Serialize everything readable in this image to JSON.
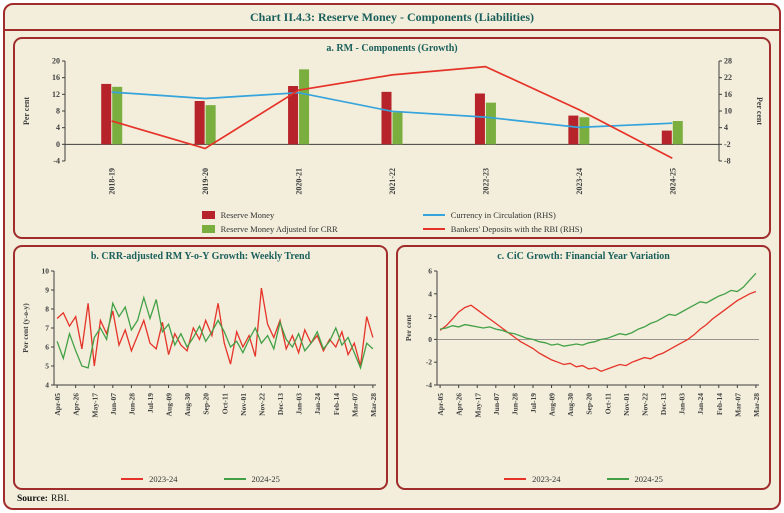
{
  "header": {
    "title": "Chart II.4.3: Reserve Money - Components (Liabilities)"
  },
  "source": {
    "label": "Source:",
    "value": "RBI."
  },
  "colors": {
    "frame": "#a02c2c",
    "background": "#f2eedb",
    "title_text": "#1a5f5b",
    "axis_text": "#3f3f3f",
    "bar_red": "#b6232a",
    "bar_green": "#7aae3f",
    "line_blue": "#35a3dc",
    "line_red": "#e63329",
    "line_green": "#43a047"
  },
  "chart_data": [
    {
      "id": "a",
      "type": "bar-line-combo",
      "title": "a. RM - Components (Growth)",
      "ylabel_left": "Per cent",
      "ylabel_right": "Per cent",
      "y_left": {
        "min": -4,
        "max": 20,
        "step": 4
      },
      "y_right": {
        "min": -8,
        "max": 28,
        "step": 6
      },
      "categories": [
        "2018-19",
        "2019-20",
        "2020-21",
        "2021-22",
        "2022-23",
        "2023-24",
        "2024-25"
      ],
      "bars": [
        {
          "name": "Reserve Money",
          "color_key": "bar_red",
          "values": [
            14.5,
            10.4,
            14.0,
            12.6,
            12.2,
            6.9,
            3.3
          ]
        },
        {
          "name": "Reserve Money Adjusted for CRR",
          "color_key": "bar_green",
          "values": [
            13.8,
            9.4,
            18.0,
            7.7,
            10.0,
            6.5,
            5.6
          ]
        }
      ],
      "lines": [
        {
          "name": "Currency in Circulation (RHS)",
          "color_key": "line_blue",
          "axis": "right",
          "values": [
            16.8,
            14.5,
            16.6,
            9.9,
            7.8,
            4.1,
            5.6
          ]
        },
        {
          "name": "Bankers' Deposits with the RBI (RHS)",
          "color_key": "line_red",
          "axis": "right",
          "values": [
            6.4,
            -3.5,
            17.5,
            23.0,
            26.0,
            10.5,
            -7.0
          ]
        }
      ],
      "legend_position": "bottom"
    },
    {
      "id": "b",
      "type": "line",
      "title": "b. CRR-adjusted RM Y-o-Y Growth: Weekly Trend",
      "ylabel": "Per cent (y-o-y)",
      "y": {
        "min": 4,
        "max": 10,
        "step": 1
      },
      "zero_line": false,
      "x_tick_every": 3,
      "x_tick_labels": [
        "Apr-05",
        "Apr-26",
        "May-17",
        "Jun-07",
        "Jun-28",
        "Jul-19",
        "Aug-09",
        "Aug-30",
        "Sep-20",
        "Oct-11",
        "Nov-01",
        "Nov-22",
        "Dec-13",
        "Jan-03",
        "Jan-24",
        "Feb-14",
        "Mar-07",
        "Mar-28"
      ],
      "series": [
        {
          "name": "2023-24",
          "color_key": "line_red",
          "values": [
            7.5,
            7.8,
            7.1,
            7.6,
            5.9,
            8.3,
            5.0,
            7.4,
            6.7,
            7.9,
            6.1,
            6.9,
            5.8,
            6.6,
            7.4,
            6.2,
            5.9,
            7.3,
            5.6,
            6.7,
            6.1,
            5.8,
            7.0,
            6.4,
            7.4,
            6.6,
            8.3,
            6.2,
            5.1,
            6.8,
            6.0,
            6.6,
            5.5,
            9.1,
            7.2,
            6.5,
            7.4,
            5.9,
            6.6,
            5.7,
            6.9,
            6.2,
            6.6,
            5.8,
            6.4,
            6.0,
            6.8,
            5.6,
            6.2,
            5.0,
            7.6,
            6.5
          ]
        },
        {
          "name": "2024-25",
          "color_key": "line_green",
          "values": [
            6.3,
            5.4,
            6.7,
            5.8,
            5.0,
            4.9,
            6.5,
            7.0,
            6.4,
            8.3,
            7.6,
            8.1,
            6.9,
            7.4,
            8.6,
            7.5,
            8.5,
            6.8,
            7.2,
            6.1,
            6.7,
            6.0,
            6.5,
            7.1,
            6.3,
            6.8,
            7.4,
            6.8,
            6.0,
            6.3,
            5.7,
            6.4,
            7.0,
            6.2,
            6.6,
            5.9,
            7.3,
            6.4,
            6.0,
            6.7,
            5.8,
            6.2,
            6.8,
            5.9,
            6.3,
            7.0,
            6.1,
            6.5,
            5.7,
            4.9,
            6.2,
            5.9
          ]
        }
      ],
      "legend_position": "bottom"
    },
    {
      "id": "c",
      "type": "line",
      "title": "c. CiC Growth: Financial Year Variation",
      "ylabel": "Per cent",
      "y": {
        "min": -4,
        "max": 6,
        "step": 2
      },
      "zero_line": true,
      "x_tick_every": 3,
      "x_tick_labels": [
        "Apr-05",
        "Apr-26",
        "May-17",
        "Jun-07",
        "Jun-28",
        "Jul-19",
        "Aug-09",
        "Aug-30",
        "Sep-20",
        "Oct-11",
        "Nov-01",
        "Nov-22",
        "Dec-13",
        "Jan-03",
        "Jan-24",
        "Feb-14",
        "Mar-07",
        "Mar-28"
      ],
      "series": [
        {
          "name": "2023-24",
          "color_key": "line_red",
          "values": [
            0.8,
            1.2,
            1.8,
            2.4,
            2.8,
            3.0,
            2.6,
            2.2,
            1.8,
            1.4,
            1.0,
            0.6,
            0.2,
            -0.2,
            -0.5,
            -0.8,
            -1.2,
            -1.5,
            -1.8,
            -2.0,
            -2.2,
            -2.1,
            -2.4,
            -2.3,
            -2.6,
            -2.5,
            -2.8,
            -2.6,
            -2.4,
            -2.2,
            -2.3,
            -2.0,
            -1.8,
            -1.6,
            -1.7,
            -1.4,
            -1.2,
            -0.9,
            -0.6,
            -0.3,
            0.0,
            0.4,
            0.9,
            1.3,
            1.8,
            2.2,
            2.6,
            3.0,
            3.4,
            3.7,
            4.0,
            4.2
          ]
        },
        {
          "name": "2024-25",
          "color_key": "line_green",
          "values": [
            0.9,
            1.0,
            1.2,
            1.1,
            1.3,
            1.2,
            1.1,
            1.0,
            1.1,
            0.9,
            0.8,
            0.6,
            0.5,
            0.3,
            0.1,
            0.0,
            -0.2,
            -0.3,
            -0.5,
            -0.4,
            -0.6,
            -0.5,
            -0.4,
            -0.5,
            -0.3,
            -0.2,
            0.0,
            0.1,
            0.3,
            0.5,
            0.4,
            0.6,
            0.9,
            1.1,
            1.4,
            1.6,
            1.9,
            2.2,
            2.1,
            2.4,
            2.7,
            3.0,
            3.3,
            3.2,
            3.5,
            3.8,
            4.0,
            4.3,
            4.2,
            4.6,
            5.2,
            5.8
          ]
        }
      ],
      "legend_position": "bottom"
    }
  ]
}
